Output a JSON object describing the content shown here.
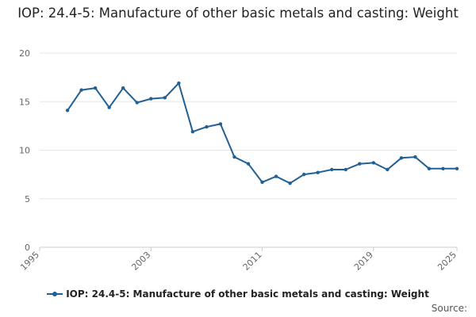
{
  "chart_data": {
    "type": "line",
    "title": "IOP: 24.4-5: Manufacture of other basic metals and casting: Weight",
    "xlabel": "",
    "ylabel": "",
    "xlim": [
      1995,
      2025
    ],
    "ylim": [
      0,
      20
    ],
    "x_ticks": [
      1995,
      2003,
      2011,
      2019,
      2025
    ],
    "x_tick_labels": [
      "1995",
      "2003",
      "2011",
      "2019",
      "2025"
    ],
    "y_ticks": [
      0,
      5,
      10,
      15,
      20
    ],
    "y_tick_labels": [
      "0",
      "5",
      "10",
      "15",
      "20"
    ],
    "grid": "horizontal",
    "legend_position": "bottom",
    "series": [
      {
        "name": "IOP: 24.4-5: Manufacture of other basic metals and casting: Weight",
        "color": "#206095",
        "x": [
          1997,
          1998,
          1999,
          2000,
          2001,
          2002,
          2003,
          2004,
          2005,
          2006,
          2007,
          2008,
          2009,
          2010,
          2011,
          2012,
          2013,
          2014,
          2015,
          2016,
          2017,
          2018,
          2019,
          2020,
          2021,
          2022,
          2023,
          2024,
          2025
        ],
        "values": [
          14.1,
          16.2,
          16.4,
          14.4,
          16.4,
          14.9,
          15.3,
          15.4,
          16.9,
          11.9,
          12.4,
          12.7,
          9.3,
          8.6,
          6.7,
          7.3,
          6.6,
          7.5,
          7.7,
          8.0,
          8.0,
          8.6,
          8.7,
          8.0,
          9.2,
          9.3,
          8.1,
          8.1,
          8.1
        ]
      }
    ]
  },
  "legend": {
    "label": "IOP: 24.4-5: Manufacture of other basic metals and casting: Weight"
  },
  "source": {
    "label": "Source:"
  }
}
